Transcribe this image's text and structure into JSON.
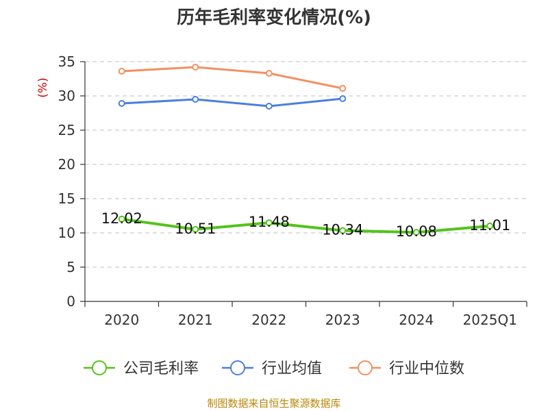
{
  "chart_data": {
    "type": "line",
    "title": "历年毛利率变化情况(%)",
    "ylabel": "(%)",
    "categories": [
      "2020",
      "2021",
      "2022",
      "2023",
      "2024",
      "2025Q1"
    ],
    "ylim": [
      0,
      35
    ],
    "yticks": [
      "0",
      "5",
      "10",
      "15",
      "20",
      "25",
      "30",
      "35"
    ],
    "grid": true,
    "legend_position": "bottom",
    "series": [
      {
        "name": "公司毛利率",
        "color": "#52c41a",
        "values": [
          12.02,
          10.51,
          11.48,
          10.34,
          10.08,
          11.01
        ],
        "labels": [
          "12.02",
          "10.51",
          "11.48",
          "10.34",
          "10.08",
          "11.01"
        ]
      },
      {
        "name": "行业均值",
        "color": "#4a7fdc",
        "values": [
          28.9,
          29.5,
          28.5,
          29.6,
          null,
          null
        ]
      },
      {
        "name": "行业中位数",
        "color": "#f39060",
        "values": [
          33.6,
          34.2,
          33.3,
          31.1,
          null,
          null
        ]
      }
    ]
  },
  "source": "制图数据来自恒生聚源数据库"
}
